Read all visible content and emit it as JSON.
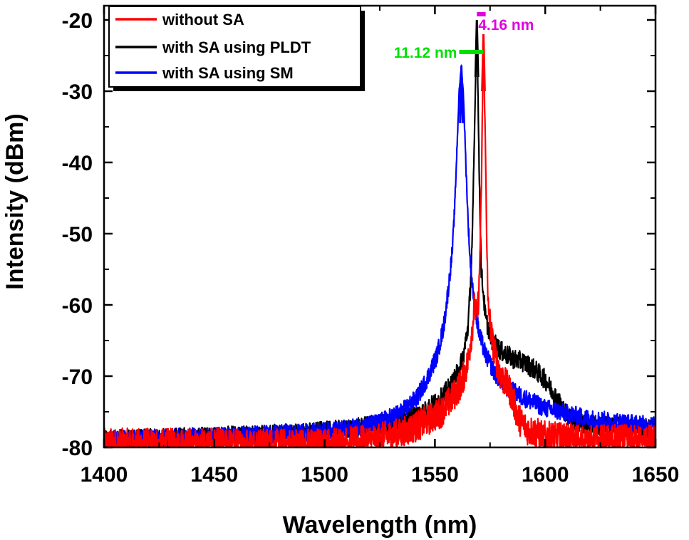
{
  "chart_data": {
    "type": "line",
    "title": "",
    "xlabel": "Wavelength (nm)",
    "ylabel": "Intensity (dBm)",
    "xlim": [
      1400,
      1650
    ],
    "ylim": [
      -80,
      -18
    ],
    "x_ticks": [
      1400,
      1450,
      1500,
      1550,
      1600,
      1650
    ],
    "y_ticks": [
      -20,
      -30,
      -40,
      -50,
      -60,
      -70,
      -80
    ],
    "grid": false,
    "legend_position": "top-left",
    "series": [
      {
        "name": "without SA",
        "color": "#ff0000",
        "noise_amplitude": 2.2,
        "points": [
          [
            1400,
            -79.5
          ],
          [
            1500,
            -79.5
          ],
          [
            1520,
            -79
          ],
          [
            1535,
            -78
          ],
          [
            1545,
            -76.5
          ],
          [
            1553,
            -75
          ],
          [
            1558,
            -73
          ],
          [
            1562,
            -71
          ],
          [
            1565,
            -68
          ],
          [
            1567,
            -63
          ],
          [
            1568,
            -60
          ],
          [
            1569,
            -62
          ],
          [
            1570,
            -58
          ],
          [
            1571,
            -45
          ],
          [
            1572,
            -22
          ],
          [
            1573,
            -40
          ],
          [
            1574,
            -60
          ],
          [
            1576,
            -65
          ],
          [
            1578,
            -68
          ],
          [
            1580,
            -70
          ],
          [
            1584,
            -72
          ],
          [
            1588,
            -76
          ],
          [
            1592,
            -77.5
          ],
          [
            1600,
            -78.5
          ],
          [
            1620,
            -79
          ],
          [
            1650,
            -79
          ]
        ]
      },
      {
        "name": "with SA using PLDT",
        "color": "#000000",
        "noise_amplitude": 1.4,
        "points": [
          [
            1400,
            -79
          ],
          [
            1450,
            -78.5
          ],
          [
            1490,
            -78
          ],
          [
            1510,
            -77.5
          ],
          [
            1530,
            -76.5
          ],
          [
            1545,
            -75
          ],
          [
            1553,
            -73
          ],
          [
            1558,
            -71
          ],
          [
            1561,
            -69
          ],
          [
            1563,
            -67
          ],
          [
            1565,
            -63
          ],
          [
            1566,
            -58
          ],
          [
            1567,
            -50
          ],
          [
            1568,
            -35
          ],
          [
            1569,
            -20
          ],
          [
            1570,
            -40
          ],
          [
            1571,
            -55
          ],
          [
            1573,
            -62
          ],
          [
            1576,
            -65
          ],
          [
            1580,
            -66.5
          ],
          [
            1585,
            -67.5
          ],
          [
            1590,
            -68
          ],
          [
            1595,
            -69
          ],
          [
            1600,
            -70.5
          ],
          [
            1605,
            -73
          ],
          [
            1610,
            -75.5
          ],
          [
            1615,
            -76.5
          ],
          [
            1625,
            -77
          ],
          [
            1650,
            -77.5
          ]
        ]
      },
      {
        "name": "with SA using SM",
        "color": "#0000ff",
        "noise_amplitude": 1.3,
        "points": [
          [
            1400,
            -79
          ],
          [
            1450,
            -78.5
          ],
          [
            1490,
            -78
          ],
          [
            1510,
            -77.5
          ],
          [
            1525,
            -76.5
          ],
          [
            1535,
            -75
          ],
          [
            1542,
            -73
          ],
          [
            1547,
            -70
          ],
          [
            1551,
            -67
          ],
          [
            1554,
            -63
          ],
          [
            1556,
            -58
          ],
          [
            1558,
            -52
          ],
          [
            1559,
            -46
          ],
          [
            1560,
            -38
          ],
          [
            1561,
            -30
          ],
          [
            1562,
            -26.5
          ],
          [
            1563,
            -31
          ],
          [
            1564,
            -40
          ],
          [
            1565,
            -48
          ],
          [
            1566,
            -54
          ],
          [
            1568,
            -60
          ],
          [
            1570,
            -64
          ],
          [
            1573,
            -67
          ],
          [
            1577,
            -69.5
          ],
          [
            1582,
            -71.5
          ],
          [
            1590,
            -73
          ],
          [
            1600,
            -74.5
          ],
          [
            1620,
            -76
          ],
          [
            1650,
            -77
          ]
        ]
      }
    ],
    "annotations": [
      {
        "label": "11.12 nm",
        "color": "#00e000",
        "x_range": [
          1561,
          1572
        ],
        "y": -24.5
      },
      {
        "label": "4.16 nm",
        "color": "#e000e0",
        "x_range": [
          1569,
          1573
        ],
        "y": -19.2
      }
    ]
  }
}
